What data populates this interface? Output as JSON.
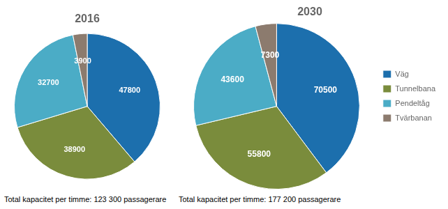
{
  "chart_data": [
    {
      "type": "pie",
      "title": "2016",
      "categories": [
        "Väg",
        "Tunnelbana",
        "Pendeltåg",
        "Tvärbanan"
      ],
      "values": [
        47800,
        38900,
        32700,
        3900
      ],
      "colors": [
        "#1c6fad",
        "#7a8c3c",
        "#4bacc6",
        "#8c7b6e"
      ],
      "data_labels": true,
      "annotations": [
        "Total kapacitet per timme: 123 300 passagerare"
      ]
    },
    {
      "type": "pie",
      "title": "2030",
      "categories": [
        "Väg",
        "Tunnelbana",
        "Pendeltåg",
        "Tvärbanan"
      ],
      "values": [
        70500,
        55800,
        43600,
        7300
      ],
      "colors": [
        "#1c6fad",
        "#7a8c3c",
        "#4bacc6",
        "#8c7b6e"
      ],
      "data_labels": true,
      "legend": "right",
      "annotations": [
        "Total kapacitet per timme: 177 200 passagerare"
      ]
    }
  ]
}
